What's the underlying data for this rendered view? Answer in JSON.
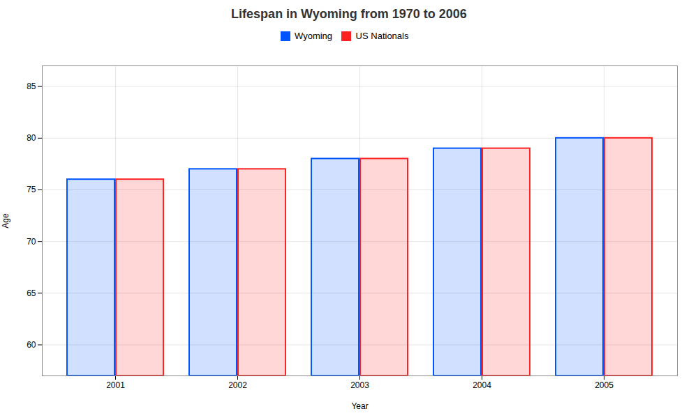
{
  "chart_data": {
    "type": "bar",
    "title": "Lifespan in Wyoming from 1970 to 2006",
    "xlabel": "Year",
    "ylabel": "Age",
    "categories": [
      "2001",
      "2002",
      "2003",
      "2004",
      "2005"
    ],
    "series": [
      {
        "name": "Wyoming",
        "color": "#0055ff",
        "values": [
          76,
          77,
          78,
          79,
          80
        ]
      },
      {
        "name": "US Nationals",
        "color": "#ff2222",
        "values": [
          76,
          77,
          78,
          79,
          80
        ]
      }
    ],
    "ylim": [
      57,
      87
    ],
    "yticks": [
      60,
      65,
      70,
      75,
      80,
      85
    ],
    "grid": true,
    "legend": "top"
  }
}
